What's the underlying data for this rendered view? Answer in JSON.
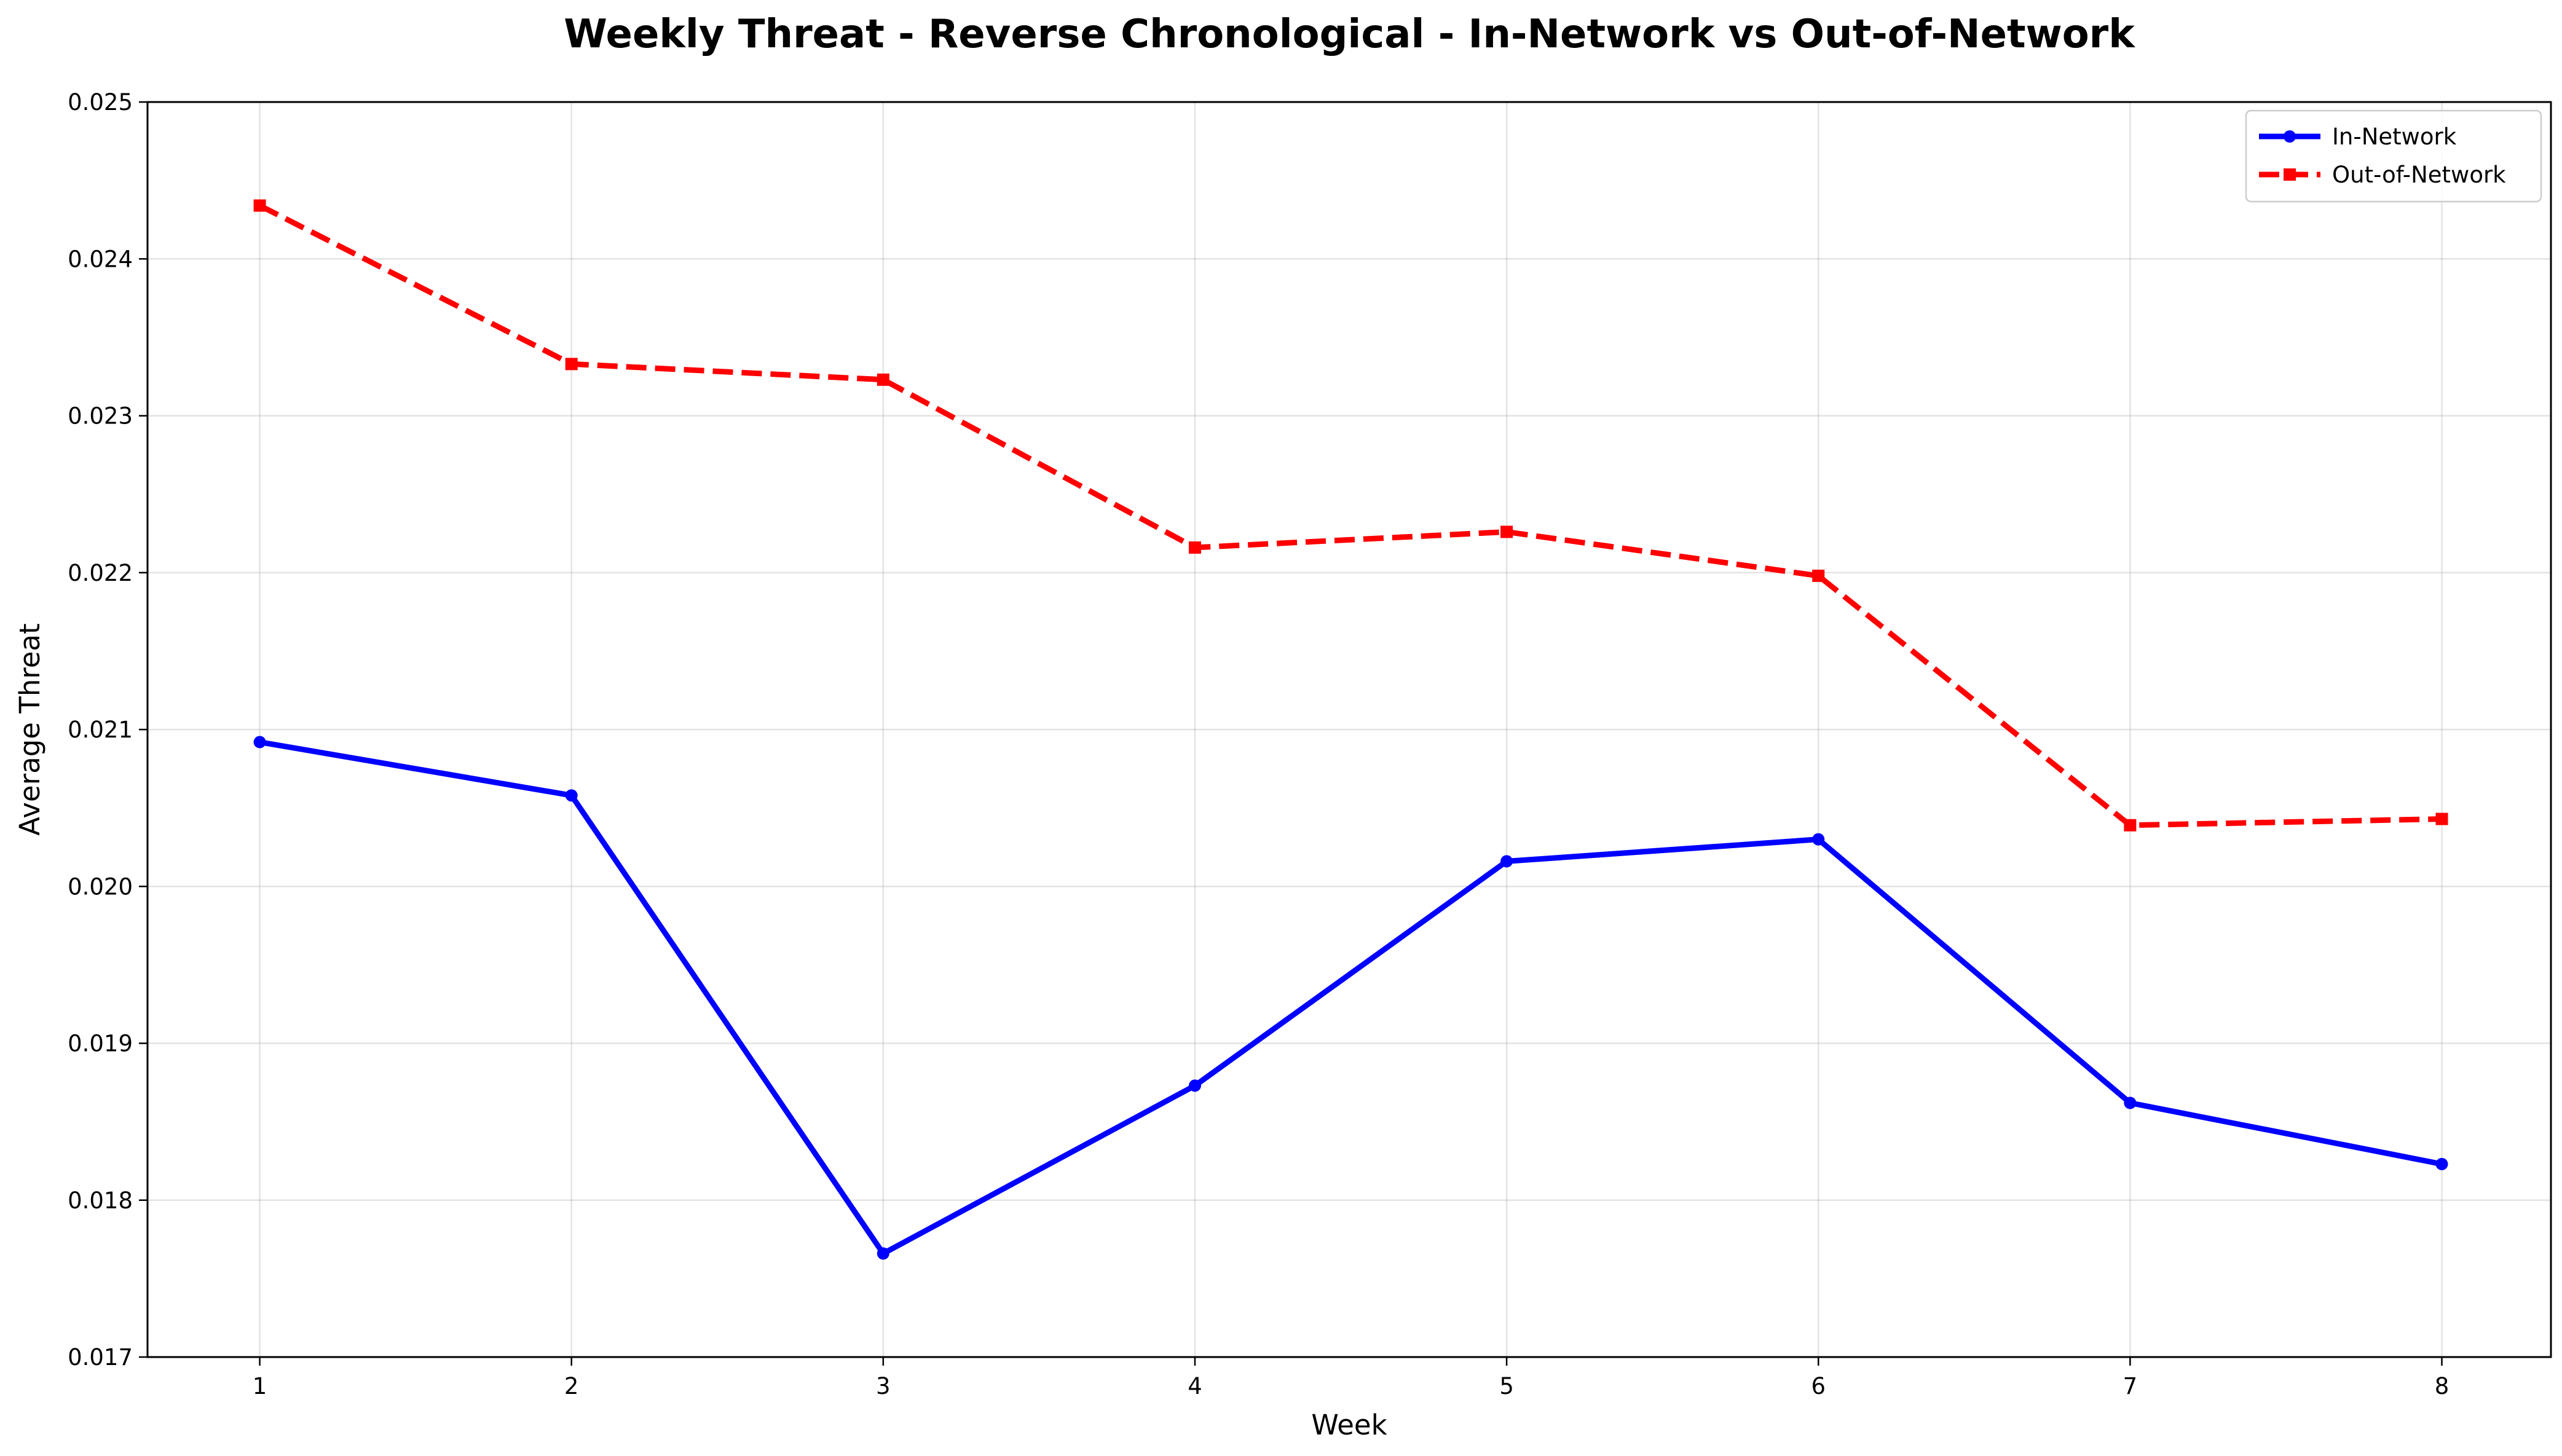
{
  "chart_data": {
    "type": "line",
    "title": "Weekly Threat - Reverse Chronological - In-Network vs Out-of-Network",
    "xlabel": "Week",
    "ylabel": "Average Threat",
    "x": [
      1,
      2,
      3,
      4,
      5,
      6,
      7,
      8
    ],
    "x_ticks": [
      "1",
      "2",
      "3",
      "4",
      "5",
      "6",
      "7",
      "8"
    ],
    "y_ticks": [
      "0.017",
      "0.018",
      "0.019",
      "0.020",
      "0.021",
      "0.022",
      "0.023",
      "0.024",
      "0.025"
    ],
    "xlim": [
      0.64,
      8.35
    ],
    "ylim": [
      0.017,
      0.025
    ],
    "grid": true,
    "legend_position": "top-right",
    "series": [
      {
        "name": "In-Network",
        "color": "#0000ff",
        "line_style": "solid",
        "marker": "circle",
        "values": [
          0.02092,
          0.02058,
          0.01766,
          0.01873,
          0.02016,
          0.0203,
          0.01862,
          0.01823
        ]
      },
      {
        "name": "Out-of-Network",
        "color": "#ff0000",
        "line_style": "dashed",
        "marker": "square",
        "values": [
          0.02434,
          0.02333,
          0.02323,
          0.02216,
          0.02226,
          0.02198,
          0.02039,
          0.02043
        ]
      }
    ]
  }
}
